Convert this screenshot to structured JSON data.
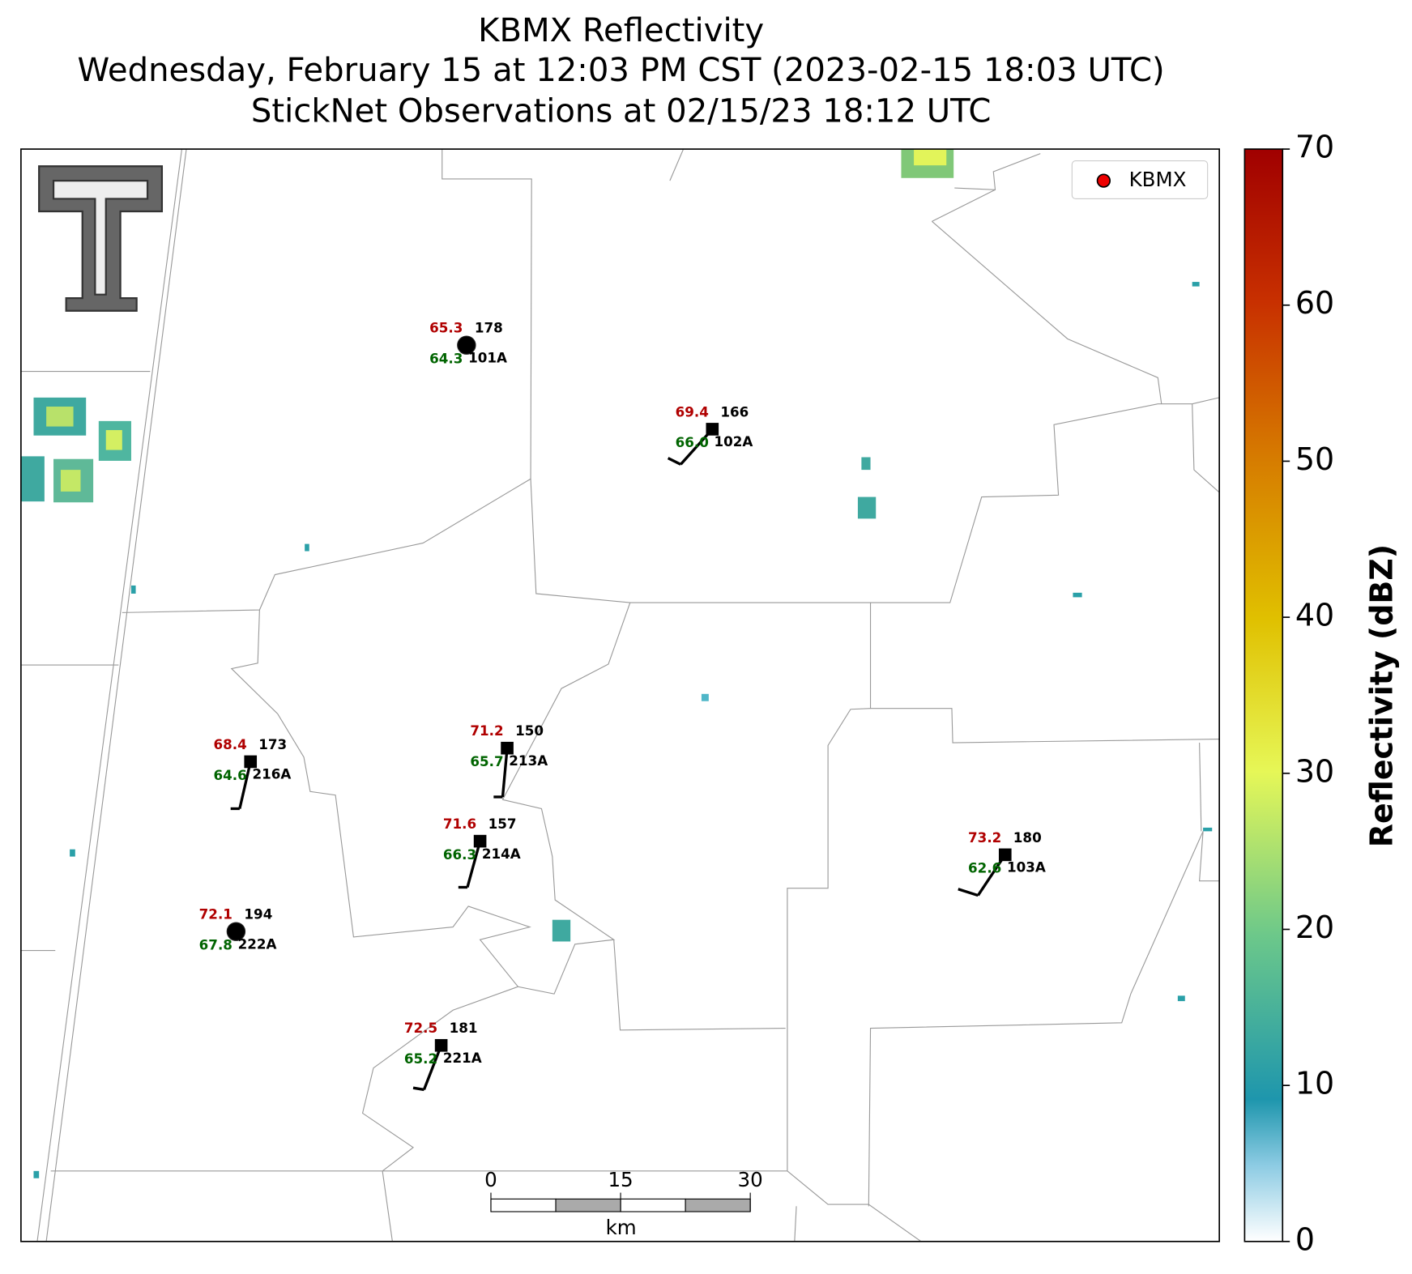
{
  "title": [
    "KBMX Reflectivity",
    "Wednesday, February 15 at 12:03 PM CST (2023-02-15 18:03 UTC)",
    "StickNet Observations at 02/15/23 18:12 UTC"
  ],
  "legend": "KBMX",
  "stations": [
    {
      "id": "101A",
      "temperature": "65.3",
      "dewpoint": "64.3",
      "direction": "178"
    },
    {
      "id": "102A",
      "temperature": "69.4",
      "dewpoint": "66.0",
      "direction": "166"
    },
    {
      "id": "216A",
      "temperature": "68.4",
      "dewpoint": "64.6",
      "direction": "173"
    },
    {
      "id": "213A",
      "temperature": "71.2",
      "dewpoint": "65.7",
      "direction": "150"
    },
    {
      "id": "214A",
      "temperature": "71.6",
      "dewpoint": "66.3",
      "direction": "157"
    },
    {
      "id": "222A",
      "temperature": "72.1",
      "dewpoint": "67.8",
      "direction": "194"
    },
    {
      "id": "221A",
      "temperature": "72.5",
      "dewpoint": "65.2",
      "direction": "181"
    },
    {
      "id": "103A",
      "temperature": "73.2",
      "dewpoint": "62.6",
      "direction": "180"
    }
  ],
  "scale_bar": {
    "ticks": [
      0,
      15,
      30
    ],
    "unit": "km"
  },
  "colorbar": {
    "label": "Reflectivity (dBZ)",
    "lim": [
      0,
      70
    ],
    "ticks": [
      0,
      10,
      20,
      30,
      40,
      50,
      60,
      70
    ]
  }
}
